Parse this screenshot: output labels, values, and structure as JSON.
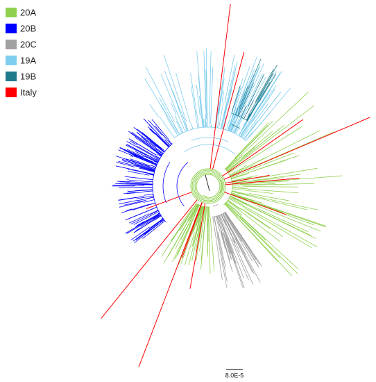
{
  "legend": {
    "items": [
      {
        "label": "20A",
        "color": "#8fd14f"
      },
      {
        "label": "20B",
        "color": "#0000ff"
      },
      {
        "label": "20C",
        "color": "#a0a0a0"
      },
      {
        "label": "19A",
        "color": "#7fcdee"
      },
      {
        "label": "19B",
        "color": "#1f7a8c"
      },
      {
        "label": "Italy",
        "color": "#ff0000"
      }
    ]
  },
  "scale_bar": {
    "label": "8.0E-5"
  }
}
